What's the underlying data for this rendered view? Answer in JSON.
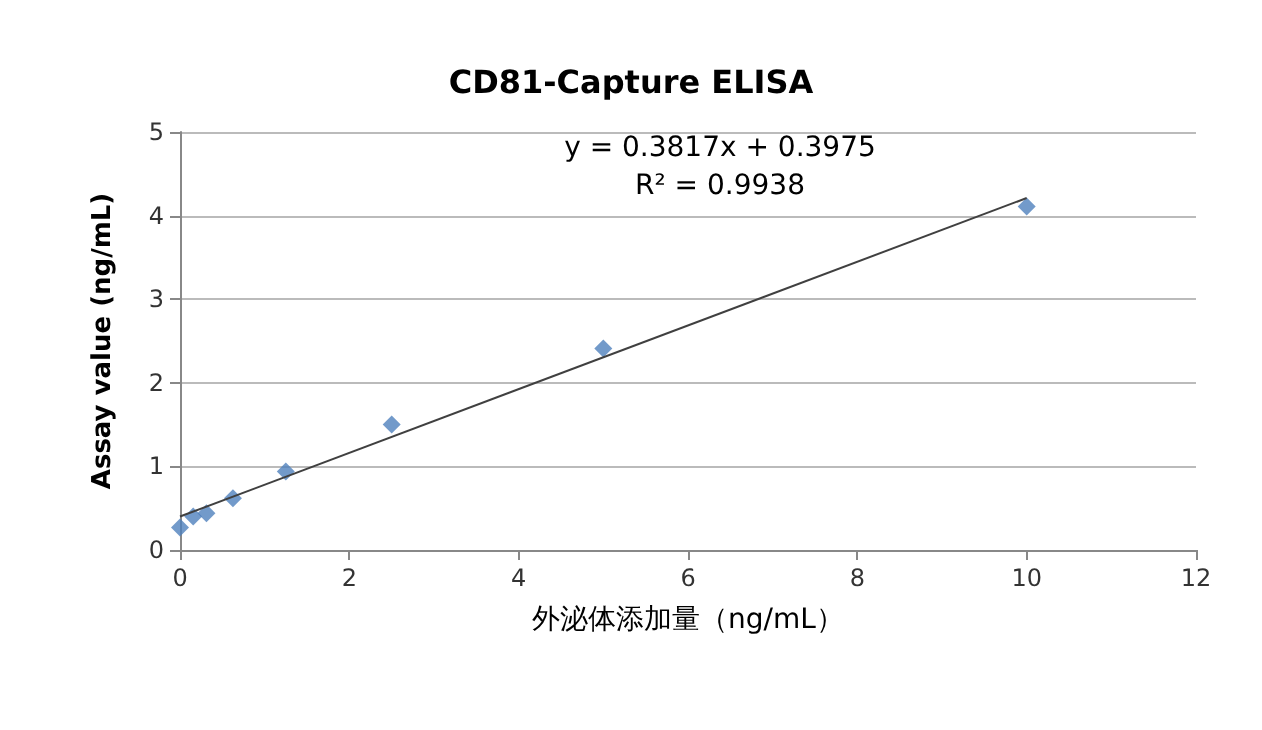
{
  "chart_data": {
    "type": "scatter",
    "title": "CD81-Capture ELISA",
    "xlabel": "外泌体添加量（ng/mL）",
    "ylabel": "Assay value (ng/mL)",
    "annotations": [
      "y = 0.3817x + 0.3975",
      "R² = 0.9938"
    ],
    "series": [
      {
        "color": "#4f81bd",
        "marker": "diamond",
        "x": [
          0,
          0.156,
          0.3125,
          0.625,
          1.25,
          2.5,
          5,
          10
        ],
        "values": [
          0.27,
          0.4,
          0.44,
          0.62,
          0.94,
          1.5,
          2.41,
          4.11
        ]
      },
      {
        "type": "line",
        "color": "#404040",
        "marker": "none",
        "line_style": "solid",
        "x": [
          0,
          10
        ],
        "values": [
          0.4,
          4.21
        ]
      }
    ],
    "xlim": [
      0,
      12
    ],
    "xticks": [
      0,
      2,
      4,
      6,
      8,
      10,
      12
    ],
    "ylim": [
      0,
      5
    ],
    "yticks": [
      0,
      1,
      2,
      3,
      4,
      5
    ],
    "grid": "y"
  }
}
